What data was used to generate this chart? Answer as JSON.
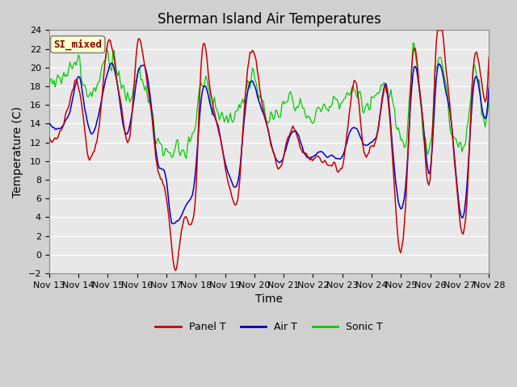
{
  "title": "Sherman Island Air Temperatures",
  "xlabel": "Time",
  "ylabel": "Temperature (C)",
  "ylim": [
    -2,
    24
  ],
  "yticks": [
    -2,
    0,
    2,
    4,
    6,
    8,
    10,
    12,
    14,
    16,
    18,
    20,
    22,
    24
  ],
  "x_tick_labels": [
    "Nov 13",
    "Nov 14",
    "Nov 15",
    "Nov 16",
    "Nov 17",
    "Nov 18",
    "Nov 19",
    "Nov 20",
    "Nov 21",
    "Nov 22",
    "Nov 23",
    "Nov 24",
    "Nov 25",
    "Nov 26",
    "Nov 27",
    "Nov 28"
  ],
  "legend_labels": [
    "Panel T",
    "Air T",
    "Sonic T"
  ],
  "panel_color": "#cc0000",
  "air_color": "#0000cc",
  "sonic_color": "#00cc00",
  "annotation_text": "SI_mixed",
  "bg_color": "#e0e0e0",
  "plot_bg_color": "#e8e8e8",
  "title_fontsize": 12,
  "axis_fontsize": 10,
  "tick_fontsize": 8
}
